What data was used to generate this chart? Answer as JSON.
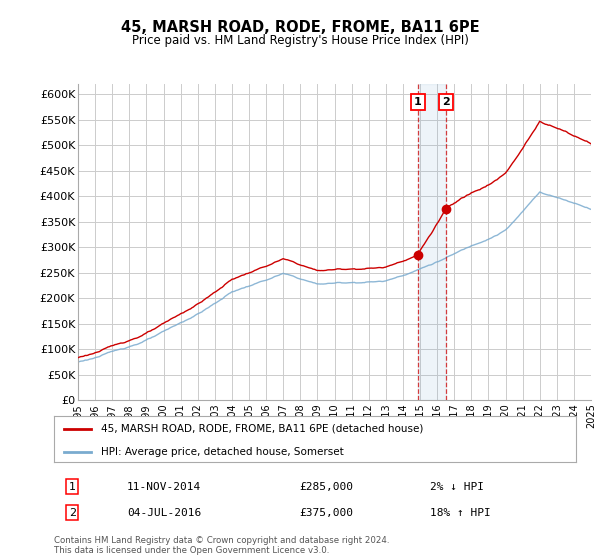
{
  "title": "45, MARSH ROAD, RODE, FROME, BA11 6PE",
  "subtitle": "Price paid vs. HM Land Registry's House Price Index (HPI)",
  "ylabel_ticks": [
    "£0",
    "£50K",
    "£100K",
    "£150K",
    "£200K",
    "£250K",
    "£300K",
    "£350K",
    "£400K",
    "£450K",
    "£500K",
    "£550K",
    "£600K"
  ],
  "ytick_values": [
    0,
    50000,
    100000,
    150000,
    200000,
    250000,
    300000,
    350000,
    400000,
    450000,
    500000,
    550000,
    600000
  ],
  "ylim": [
    0,
    620000
  ],
  "background_color": "#ffffff",
  "grid_color": "#cccccc",
  "line1_color": "#cc0000",
  "line2_color": "#7aabcf",
  "purchase1_year": 2014.875,
  "purchase2_year": 2016.5,
  "purchase1_price": 285000,
  "purchase2_price": 375000,
  "legend_label1": "45, MARSH ROAD, RODE, FROME, BA11 6PE (detached house)",
  "legend_label2": "HPI: Average price, detached house, Somerset",
  "ann1_date": "11-NOV-2014",
  "ann1_price": "£285,000",
  "ann1_hpi": "2% ↓ HPI",
  "ann2_date": "04-JUL-2016",
  "ann2_price": "£375,000",
  "ann2_hpi": "18% ↑ HPI",
  "footer": "Contains HM Land Registry data © Crown copyright and database right 2024.\nThis data is licensed under the Open Government Licence v3.0.",
  "x_start_year": 1995,
  "x_end_year": 2025
}
